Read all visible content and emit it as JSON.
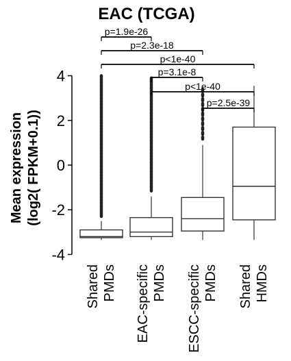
{
  "chart_data": {
    "type": "box",
    "title": "EAC (TCGA)",
    "ylabel_line1": "Mean expression",
    "ylabel_line2": "(log2( FPKM+0.1))",
    "ylim": [
      -4.2,
      4.2
    ],
    "yticks": [
      -4,
      -2,
      0,
      2,
      4
    ],
    "categories": [
      {
        "line1": "Shared",
        "line2": "PMDs"
      },
      {
        "line1": "EAC-specific",
        "line2": "PMDs"
      },
      {
        "line1": "ESCC-specific",
        "line2": "PMDs"
      },
      {
        "line1": "Shared",
        "line2": "HMDs"
      }
    ],
    "boxes": [
      {
        "whisker_low": -3.35,
        "q1": -3.25,
        "median": -3.2,
        "q3": -2.9,
        "whisker_high": -2.5,
        "outliers_low": -2.3,
        "outliers_high": 4.0
      },
      {
        "whisker_low": -3.35,
        "q1": -3.2,
        "median": -3.0,
        "q3": -2.35,
        "whisker_high": -1.4,
        "outliers_low": -1.2,
        "outliers_high": 3.9
      },
      {
        "whisker_low": -3.35,
        "q1": -2.95,
        "median": -2.4,
        "q3": -1.45,
        "whisker_high": 0.9,
        "outliers_low": 1.1,
        "outliers_high": 3.4
      },
      {
        "whisker_low": -3.35,
        "q1": -2.45,
        "median": -0.95,
        "q3": 1.7,
        "whisker_high": 3.55,
        "outliers_low": null,
        "outliers_high": null
      }
    ],
    "comparisons": [
      {
        "label": "p=1.9e-26",
        "from": 0,
        "to": 1
      },
      {
        "label": "p=2.3e-18",
        "from": 0,
        "to": 2
      },
      {
        "label": "p<1e-40",
        "from": 0,
        "to": 3
      },
      {
        "label": "p=3.1e-8",
        "from": 1,
        "to": 2
      },
      {
        "label": "p<1e-40",
        "from": 1,
        "to": 3
      },
      {
        "label": "p=2.5e-39",
        "from": 2,
        "to": 3
      }
    ]
  }
}
